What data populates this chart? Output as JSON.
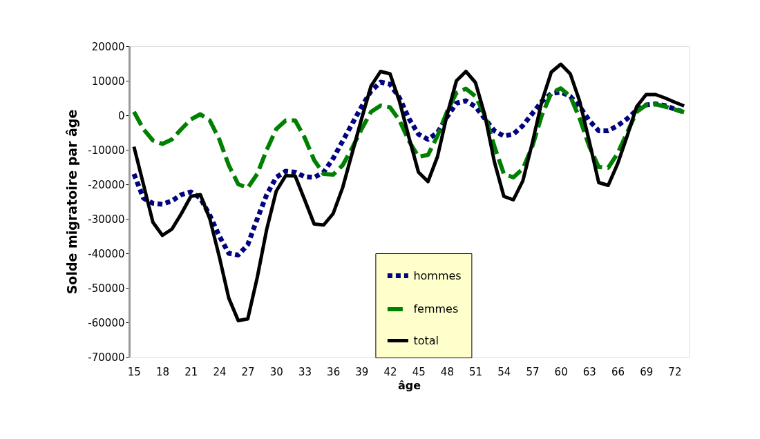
{
  "chart_data": {
    "type": "line",
    "xlabel": "âge",
    "ylabel": "Solde migratoire par âge",
    "categories": [
      "15",
      null,
      null,
      "18",
      null,
      null,
      "21",
      null,
      null,
      "24",
      null,
      null,
      "27",
      null,
      null,
      "30",
      null,
      null,
      "33",
      null,
      null,
      "36",
      null,
      null,
      "39",
      null,
      null,
      "42",
      null,
      null,
      "45",
      null,
      null,
      "48",
      null,
      null,
      "51",
      null,
      null,
      "54",
      null,
      null,
      "57",
      null,
      null,
      "60",
      null,
      null,
      "63",
      null,
      null,
      "66",
      null,
      null,
      "69",
      null,
      null,
      "72",
      null
    ],
    "series": [
      {
        "name": "hommes",
        "color": "#000080",
        "line_style": "dotted",
        "values": [
          -17000,
          -24000,
          -25500,
          -25800,
          -24800,
          -23000,
          -22200,
          -24000,
          -29000,
          -35000,
          -40000,
          -40500,
          -37500,
          -30000,
          -23000,
          -18000,
          -16200,
          -16500,
          -17800,
          -18000,
          -16500,
          -12500,
          -7500,
          -2500,
          2500,
          7000,
          9600,
          9000,
          5000,
          -1000,
          -5500,
          -7000,
          -5000,
          -500,
          3500,
          4200,
          2500,
          -1000,
          -4500,
          -6000,
          -5500,
          -3000,
          500,
          4000,
          6300,
          6700,
          5500,
          2500,
          -1500,
          -4500,
          -4500,
          -3000,
          -1000,
          1500,
          3000,
          3300,
          2800,
          1800,
          900
        ]
      },
      {
        "name": "femmes",
        "color": "#008000",
        "line_style": "dashed",
        "values": [
          1000,
          -4000,
          -7300,
          -8300,
          -7000,
          -4000,
          -1200,
          300,
          -1500,
          -7000,
          -14500,
          -20000,
          -21000,
          -17000,
          -10000,
          -4000,
          -1500,
          -1500,
          -6500,
          -13000,
          -17000,
          -17200,
          -14500,
          -9500,
          -4000,
          1000,
          2800,
          2300,
          -1500,
          -7500,
          -12000,
          -11500,
          -6000,
          1000,
          6500,
          7700,
          5500,
          0,
          -9000,
          -17000,
          -18000,
          -15500,
          -9000,
          0,
          6500,
          7800,
          5500,
          -1000,
          -9000,
          -15000,
          -15200,
          -11000,
          -5000,
          1000,
          3000,
          3200,
          2500,
          1700,
          900
        ]
      },
      {
        "name": "total",
        "color": "#000000",
        "line_style": "solid",
        "values": [
          -9100,
          -20000,
          -31000,
          -34800,
          -33000,
          -28500,
          -23500,
          -23000,
          -30000,
          -41000,
          -53000,
          -59500,
          -59000,
          -47000,
          -33000,
          -22000,
          -17500,
          -17600,
          -24500,
          -31500,
          -31800,
          -28500,
          -21000,
          -11000,
          -1000,
          8500,
          12700,
          12000,
          4000,
          -6500,
          -16500,
          -19200,
          -12000,
          0,
          10000,
          12700,
          9500,
          0,
          -13500,
          -23500,
          -24500,
          -19000,
          -8000,
          4000,
          12500,
          14800,
          12000,
          4000,
          -7500,
          -19500,
          -20300,
          -14000,
          -6000,
          2500,
          6000,
          6000,
          5000,
          3800,
          2700
        ]
      }
    ],
    "ylim": [
      -70000,
      20000
    ],
    "yticks": [
      -70000,
      -60000,
      -50000,
      -40000,
      -30000,
      -20000,
      -10000,
      0,
      10000,
      20000
    ],
    "grid": false,
    "legend": "bottom",
    "marker": "none"
  }
}
